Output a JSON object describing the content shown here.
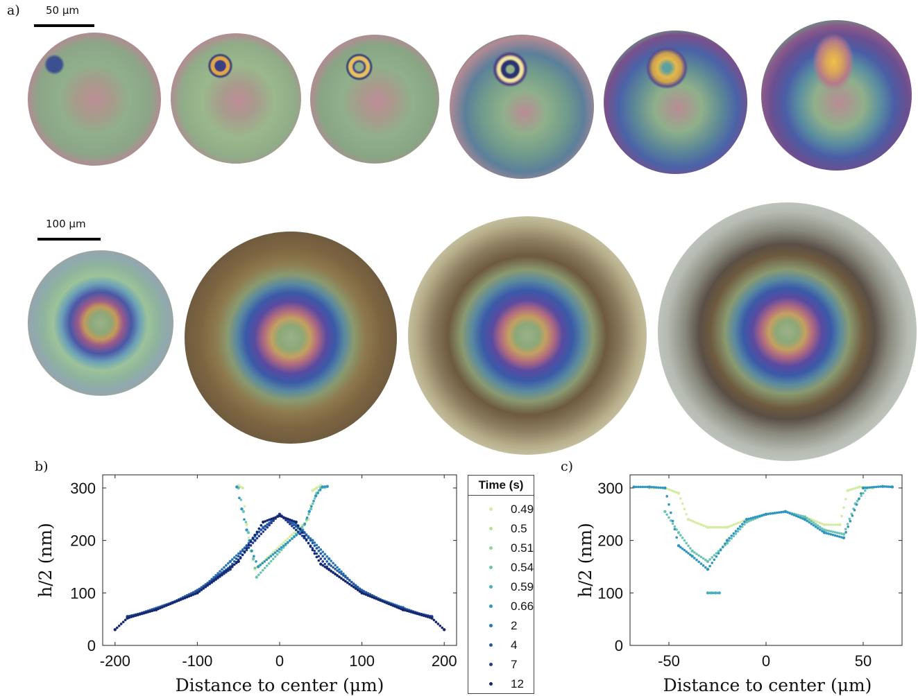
{
  "panels": {
    "a": "a)",
    "b": "b)",
    "c": "c)"
  },
  "scale_bars": {
    "top": "50 µm",
    "bottom": "100 µm"
  },
  "colors": {
    "green": "#8fb08a",
    "pink": "#b08a95",
    "blue": "#4a63a8",
    "magenta": "#7a4f8a",
    "olive": "#b7ae6a",
    "brown": "#7e6542",
    "cream": "#d2d0b4",
    "silver": "#c9ccc8",
    "rim": "#5f5f5a"
  },
  "legend": {
    "title": "Time (s)",
    "entries": [
      {
        "label": "0.49",
        "color": "#d6eba3"
      },
      {
        "label": "0.5",
        "color": "#b7dfa0"
      },
      {
        "label": "0.51",
        "color": "#94d2a6"
      },
      {
        "label": "0.54",
        "color": "#6cc3b1"
      },
      {
        "label": "0.59",
        "color": "#46b0bd"
      },
      {
        "label": "0.66",
        "color": "#2e96c0"
      },
      {
        "label": "2",
        "color": "#2678b5"
      },
      {
        "label": "4",
        "color": "#2658a4"
      },
      {
        "label": "7",
        "color": "#233c90"
      },
      {
        "label": "12",
        "color": "#15276e"
      }
    ]
  },
  "chart_data": [
    {
      "type": "scatter",
      "panel": "b)",
      "xlabel": "Distance to center (μm)",
      "ylabel": "h/2 (nm)",
      "xlim": [
        -215,
        215
      ],
      "ylim": [
        0,
        325
      ],
      "xticks": [
        "-200",
        "-100",
        "0",
        "100",
        "200"
      ],
      "yticks": [
        "0",
        "100",
        "200",
        "300"
      ],
      "series": [
        {
          "name": "0.49",
          "x": [
            -50,
            -45,
            -40,
            -35,
            -30,
            35,
            40,
            45,
            50,
            55
          ],
          "y": [
            305,
            300,
            230,
            180,
            145,
            240,
            295,
            300,
            305,
            300
          ]
        },
        {
          "name": "0.54",
          "x": [
            -50,
            -44,
            -38,
            -32,
            -28,
            30,
            38,
            45,
            50,
            55
          ],
          "y": [
            300,
            255,
            215,
            165,
            130,
            230,
            260,
            290,
            300,
            302
          ]
        },
        {
          "name": "0.66",
          "x": [
            -52,
            -46,
            -40,
            -34,
            -26,
            28,
            36,
            44,
            52,
            58
          ],
          "y": [
            302,
            260,
            220,
            180,
            150,
            220,
            255,
            285,
            302,
            303
          ]
        },
        {
          "name": "2",
          "x": [
            -150,
            -100,
            -60,
            -40,
            -20,
            0,
            20,
            40,
            60,
            100,
            150
          ],
          "y": [
            70,
            100,
            160,
            190,
            225,
            248,
            230,
            200,
            165,
            100,
            72
          ]
        },
        {
          "name": "4",
          "x": [
            -175,
            -130,
            -100,
            -60,
            -30,
            0,
            30,
            60,
            100,
            130,
            175
          ],
          "y": [
            58,
            82,
            105,
            150,
            210,
            250,
            215,
            155,
            105,
            82,
            58
          ]
        },
        {
          "name": "7",
          "x": [
            -185,
            -150,
            -100,
            -60,
            -30,
            0,
            30,
            60,
            100,
            150,
            185
          ],
          "y": [
            55,
            68,
            100,
            145,
            200,
            250,
            205,
            145,
            100,
            68,
            55
          ]
        },
        {
          "name": "12",
          "x": [
            -200,
            -185,
            -150,
            -100,
            -50,
            -20,
            0,
            20,
            50,
            100,
            150,
            185,
            200
          ],
          "y": [
            30,
            52,
            68,
            100,
            160,
            235,
            247,
            235,
            155,
            100,
            68,
            52,
            30
          ]
        }
      ]
    },
    {
      "type": "scatter",
      "panel": "c)",
      "xlabel": "Distance to center (μm)",
      "ylabel": "h/2 (nm)",
      "xlim": [
        -70,
        70
      ],
      "ylim": [
        0,
        325
      ],
      "xticks": [
        "-50",
        "0",
        "50"
      ],
      "yticks": [
        "0",
        "100",
        "200",
        "300"
      ],
      "series": [
        {
          "name": "0.49",
          "x": [
            -60,
            -52,
            -45,
            -40,
            -30,
            -20,
            -10,
            0,
            10,
            20,
            30,
            38,
            42,
            48,
            55
          ],
          "y": [
            300,
            300,
            290,
            240,
            225,
            225,
            240,
            250,
            255,
            245,
            230,
            230,
            295,
            302,
            300
          ]
        },
        {
          "name": "0.54",
          "x": [
            -52,
            -45,
            -38,
            -30,
            -20,
            -10,
            0,
            10,
            20,
            30,
            40,
            46,
            52
          ],
          "y": [
            255,
            215,
            180,
            160,
            195,
            235,
            250,
            255,
            245,
            220,
            212,
            270,
            300
          ]
        },
        {
          "name": "0.59",
          "x": [
            -30,
            -28,
            -26,
            -24
          ],
          "y": [
            100,
            100,
            100,
            100
          ]
        },
        {
          "name": "0.66",
          "x": [
            -68,
            -60,
            -52,
            -45,
            -38,
            -30,
            -20,
            -10,
            0,
            10,
            20,
            30,
            40,
            50,
            60,
            65
          ],
          "y": [
            302,
            302,
            300,
            190,
            170,
            145,
            200,
            240,
            250,
            255,
            240,
            215,
            205,
            300,
            303,
            302
          ]
        }
      ]
    }
  ]
}
